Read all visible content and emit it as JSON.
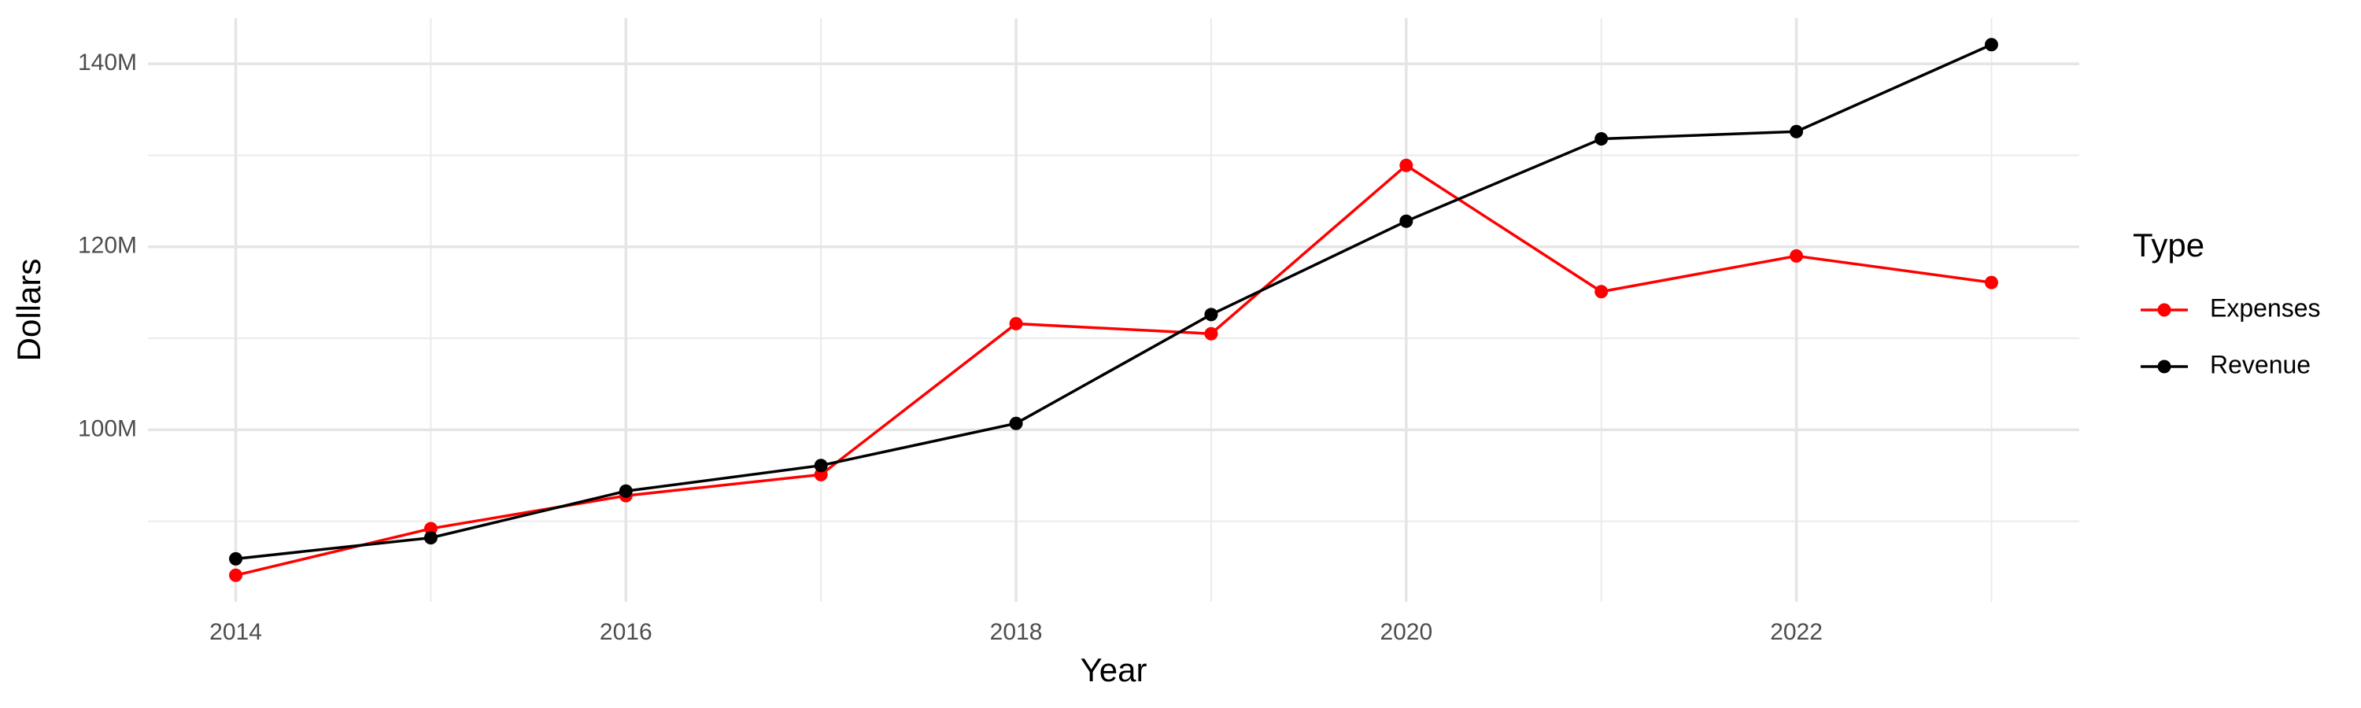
{
  "chart_data": {
    "type": "line",
    "x_label": "Year",
    "y_label": "Dollars",
    "x": [
      2014,
      2015,
      2016,
      2017,
      2018,
      2019,
      2020,
      2021,
      2022,
      2023
    ],
    "series": [
      {
        "name": "Expenses",
        "color": "#ff0000",
        "values": [
          84100000,
          89200000,
          92800000,
          95100000,
          111600000,
          110500000,
          128900000,
          115100000,
          119000000,
          116100000
        ]
      },
      {
        "name": "Revenue",
        "color": "#000000",
        "values": [
          85900000,
          88200000,
          93300000,
          96100000,
          100700000,
          112600000,
          122800000,
          131800000,
          132600000,
          142100000
        ]
      }
    ],
    "xlim": [
      2013.55,
      2023.45
    ],
    "xticks": [
      2014,
      2016,
      2018,
      2020,
      2022
    ],
    "ylim": [
      81200000,
      145000000
    ],
    "yticks": [
      {
        "value": 100000000,
        "label": "100M"
      },
      {
        "value": 120000000,
        "label": "120M"
      },
      {
        "value": 140000000,
        "label": "140M"
      }
    ],
    "grid": true,
    "legend_title": "Type",
    "legend_position": "right"
  }
}
